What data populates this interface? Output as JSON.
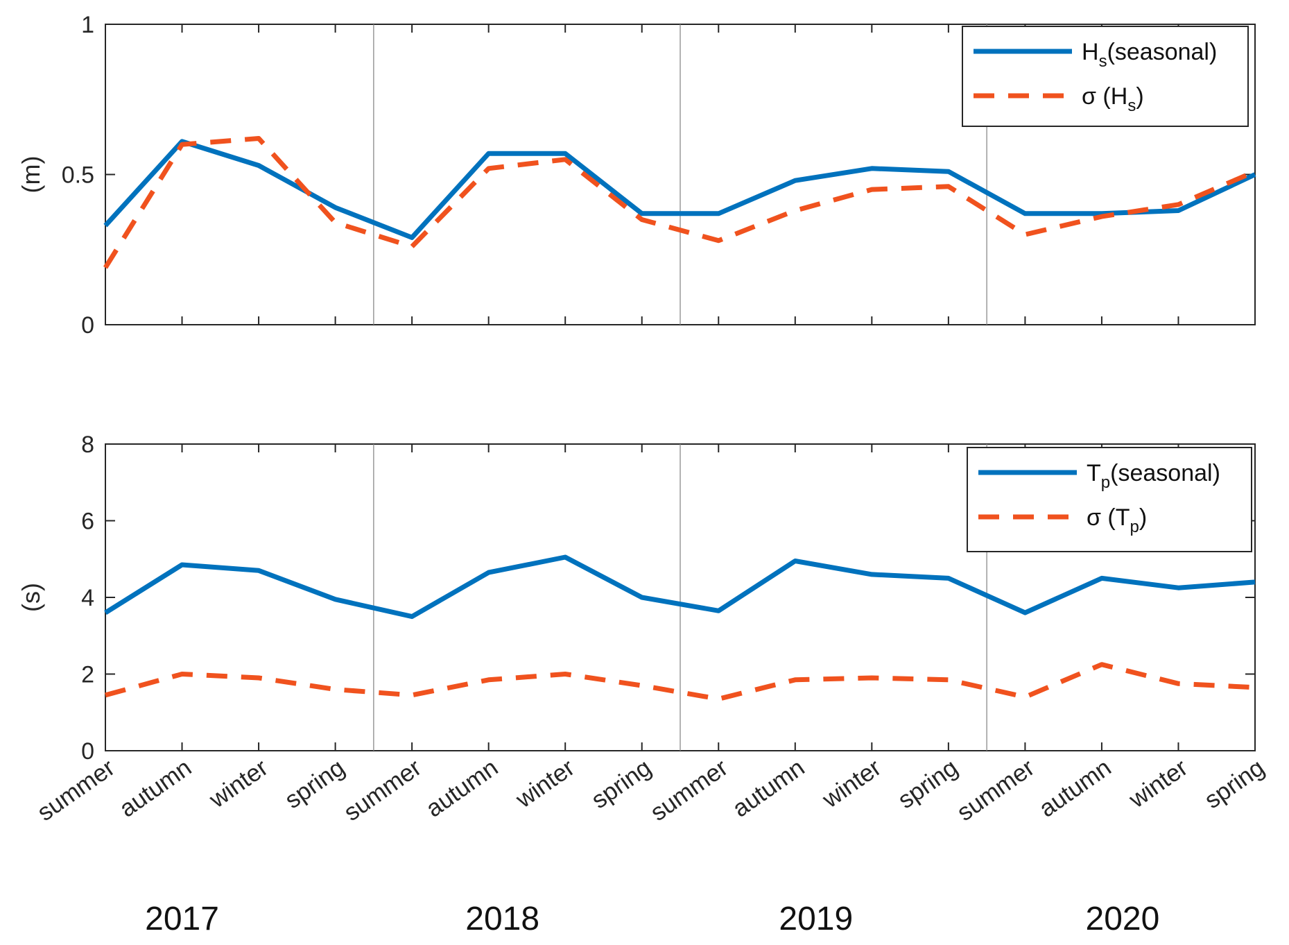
{
  "chart_data": [
    {
      "type": "line",
      "ylabel": "(m)",
      "ylim": [
        0,
        1
      ],
      "yticks": [
        "0",
        "0.5",
        "1"
      ],
      "categories": [
        "summer",
        "autumn",
        "winter",
        "spring",
        "summer",
        "autumn",
        "winter",
        "spring",
        "summer",
        "autumn",
        "winter",
        "spring",
        "summer",
        "autumn",
        "winter",
        "spring"
      ],
      "grid": "vertical lines between years",
      "legend_position": "top-right",
      "series": [
        {
          "name": "Hs(seasonal)",
          "legend_main": "H",
          "legend_sub": "s",
          "legend_tail": "(seasonal)",
          "color": "#0072BD",
          "style": "solid",
          "values": [
            0.33,
            0.61,
            0.53,
            0.39,
            0.29,
            0.57,
            0.57,
            0.37,
            0.37,
            0.48,
            0.52,
            0.51,
            0.37,
            0.37,
            0.38,
            0.5
          ]
        },
        {
          "name": "σ (Hs)",
          "legend_main": "σ (H",
          "legend_sub": "s",
          "legend_tail": ")",
          "color": "#F0521E",
          "style": "dashed",
          "values": [
            0.19,
            0.6,
            0.62,
            0.34,
            0.26,
            0.52,
            0.55,
            0.35,
            0.28,
            0.38,
            0.45,
            0.46,
            0.3,
            0.36,
            0.4,
            0.51
          ]
        }
      ]
    },
    {
      "type": "line",
      "ylabel": "(s)",
      "ylim": [
        0,
        8
      ],
      "yticks": [
        "0",
        "2",
        "4",
        "6",
        "8"
      ],
      "categories": [
        "summer",
        "autumn",
        "winter",
        "spring",
        "summer",
        "autumn",
        "winter",
        "spring",
        "summer",
        "autumn",
        "winter",
        "spring",
        "summer",
        "autumn",
        "winter",
        "spring"
      ],
      "grid": "vertical lines between years",
      "legend_position": "top-right",
      "series": [
        {
          "name": "Tp(seasonal)",
          "legend_main": "T",
          "legend_sub": "p",
          "legend_tail": "(seasonal)",
          "color": "#0072BD",
          "style": "solid",
          "values": [
            3.6,
            4.85,
            4.7,
            3.95,
            3.5,
            4.65,
            5.05,
            4.0,
            3.65,
            4.95,
            4.6,
            4.5,
            3.6,
            4.5,
            4.25,
            4.4
          ]
        },
        {
          "name": "σ (Tp)",
          "legend_main": "σ (T",
          "legend_sub": "p",
          "legend_tail": ")",
          "color": "#F0521E",
          "style": "dashed",
          "values": [
            1.45,
            2.0,
            1.9,
            1.6,
            1.45,
            1.85,
            2.0,
            1.7,
            1.35,
            1.85,
            1.9,
            1.85,
            1.4,
            2.25,
            1.75,
            1.65
          ]
        }
      ]
    }
  ],
  "years": [
    "2017",
    "2018",
    "2019",
    "2020"
  ]
}
